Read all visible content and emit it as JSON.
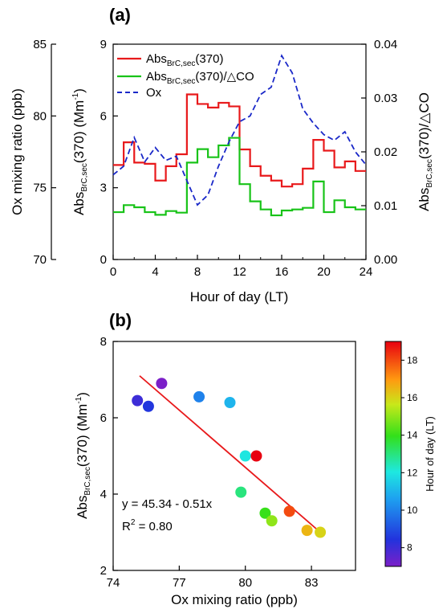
{
  "chart_data": [
    {
      "type": "line",
      "panel_label": "(a)",
      "x_range": [
        0,
        24
      ],
      "x_ticks": [
        "0",
        "4",
        "8",
        "12",
        "16",
        "20",
        "24"
      ],
      "xlabel": "Hour of day (LT)",
      "left_axis": {
        "label_main": "Abs",
        "label_sub": "BrC,sec",
        "label_rest": "(370) (Mm",
        "label_sup": "-1",
        "label_end": ")",
        "range": [
          0,
          9
        ],
        "ticks": [
          "0",
          "3",
          "6",
          "9"
        ]
      },
      "right_axis": {
        "label_main": "Abs",
        "label_sub": "BrC,sec",
        "label_rest": "(370)/△CO",
        "range": [
          0,
          0.04
        ],
        "ticks": [
          "0.00",
          "0.01",
          "0.02",
          "0.03",
          "0.04"
        ]
      },
      "offset_axis": {
        "label": "Ox mixing ratio (ppb)",
        "range": [
          70,
          85
        ],
        "ticks": [
          "70",
          "75",
          "80",
          "85"
        ]
      },
      "legend": [
        {
          "main": "Abs",
          "sub": "BrC,sec",
          "rest": "(370)",
          "color": "#e8191b",
          "style": "solid"
        },
        {
          "main": "Abs",
          "sub": "BrC,sec",
          "rest": "(370)/△CO",
          "color": "#18c318",
          "style": "solid"
        },
        {
          "main": "Ox",
          "sub": "",
          "rest": "",
          "color": "#1a28c8",
          "style": "dashed"
        }
      ],
      "series": [
        {
          "name": "AbsBrC,sec(370)",
          "axis": "left",
          "step": true,
          "color": "#e8191b",
          "x": [
            0,
            1,
            2,
            3,
            4,
            5,
            6,
            7,
            8,
            9,
            10,
            11,
            12,
            13,
            14,
            15,
            16,
            17,
            18,
            19,
            20,
            21,
            22,
            23
          ],
          "values": [
            3.95,
            4.9,
            4.05,
            4.0,
            3.3,
            3.9,
            4.4,
            6.9,
            6.5,
            6.35,
            6.55,
            6.4,
            4.6,
            3.9,
            3.5,
            3.3,
            3.05,
            3.15,
            3.8,
            5.0,
            4.55,
            3.85,
            4.1,
            3.7
          ]
        },
        {
          "name": "AbsBrC,sec(370)/△CO",
          "axis": "right",
          "step": true,
          "color": "#18c318",
          "x": [
            0,
            1,
            2,
            3,
            4,
            5,
            6,
            7,
            8,
            9,
            10,
            11,
            12,
            13,
            14,
            15,
            16,
            17,
            18,
            19,
            20,
            21,
            22,
            23
          ],
          "values": [
            0.0088,
            0.0101,
            0.0097,
            0.0088,
            0.0083,
            0.009,
            0.0087,
            0.018,
            0.0205,
            0.019,
            0.0212,
            0.0226,
            0.014,
            0.0108,
            0.0093,
            0.0082,
            0.0091,
            0.0093,
            0.0096,
            0.0145,
            0.0088,
            0.011,
            0.0097,
            0.0093
          ]
        },
        {
          "name": "Ox",
          "axis": "offset",
          "step": false,
          "color": "#1a28c8",
          "x": [
            0,
            1,
            2,
            3,
            4,
            5,
            6,
            7,
            8,
            9,
            10,
            11,
            12,
            13,
            14,
            15,
            16,
            17,
            18,
            19,
            20,
            21,
            22,
            23,
            24
          ],
          "values": [
            75.9,
            76.5,
            78.5,
            76.8,
            77.8,
            76.9,
            77.2,
            75.5,
            73.8,
            74.5,
            76.5,
            78.2,
            79.6,
            80.0,
            81.5,
            82.0,
            84.2,
            83.0,
            80.5,
            79.5,
            78.7,
            78.3,
            78.9,
            77.5,
            76.6
          ]
        }
      ]
    },
    {
      "type": "scatter",
      "panel_label": "(b)",
      "xlabel": "Ox mixing ratio (ppb)",
      "ylabel_main": "Abs",
      "ylabel_sub": "BrC,sec",
      "ylabel_rest": "(370) (Mm",
      "ylabel_sup": "-1",
      "ylabel_end": ")",
      "x_range": [
        74,
        85
      ],
      "y_range": [
        2,
        8
      ],
      "x_ticks": [
        "74",
        "77",
        "80",
        "83"
      ],
      "y_ticks": [
        "2",
        "4",
        "6",
        "8"
      ],
      "equation": "y = 45.34 - 0.51x",
      "r2_main": "R",
      "r2_sup": "2",
      "r2_rest": " = 0.80",
      "fit_line": {
        "x": [
          75.2,
          83.4
        ],
        "y": [
          7.1,
          3.0
        ],
        "color": "#e8191b"
      },
      "points": [
        {
          "x": 75.1,
          "y": 6.45,
          "hour": 8
        },
        {
          "x": 75.6,
          "y": 6.3,
          "hour": 8.5
        },
        {
          "x": 76.2,
          "y": 6.9,
          "hour": 7
        },
        {
          "x": 77.9,
          "y": 6.55,
          "hour": 10
        },
        {
          "x": 79.3,
          "y": 6.4,
          "hour": 11
        },
        {
          "x": 80.0,
          "y": 5.0,
          "hour": 12
        },
        {
          "x": 80.5,
          "y": 5.0,
          "hour": 19
        },
        {
          "x": 79.8,
          "y": 4.05,
          "hour": 13
        },
        {
          "x": 80.9,
          "y": 3.5,
          "hour": 14
        },
        {
          "x": 81.2,
          "y": 3.3,
          "hour": 15
        },
        {
          "x": 82.0,
          "y": 3.55,
          "hour": 18
        },
        {
          "x": 82.8,
          "y": 3.05,
          "hour": 16.5
        },
        {
          "x": 83.4,
          "y": 3.0,
          "hour": 16
        }
      ],
      "colorbar": {
        "label": "Hour of day (LT)",
        "range": [
          7,
          19
        ],
        "ticks": [
          "8",
          "10",
          "12",
          "14",
          "16",
          "18"
        ]
      }
    }
  ]
}
